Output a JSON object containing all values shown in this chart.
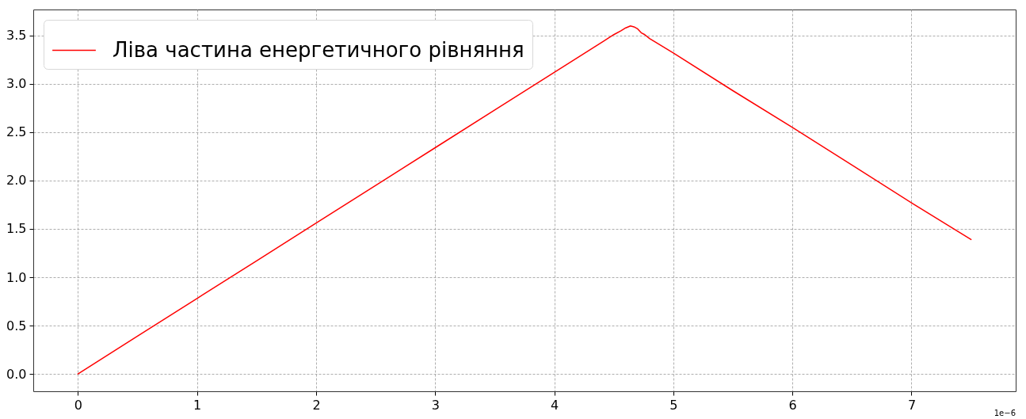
{
  "chart_data": {
    "type": "line",
    "x": [
      0,
      0.5,
      1,
      1.5,
      2,
      2.5,
      3,
      3.5,
      4,
      4.5,
      4.56,
      4.6,
      4.64,
      4.67,
      4.7,
      4.73,
      4.76,
      4.8,
      5,
      5.5,
      6,
      6.5,
      7,
      7.5
    ],
    "series": [
      {
        "name": "Ліва частина енергетичного рівняння",
        "color": "#ff0000",
        "values": [
          0,
          0.39,
          0.78,
          1.17,
          1.56,
          1.95,
          2.34,
          2.73,
          3.12,
          3.51,
          3.55,
          3.58,
          3.6,
          3.59,
          3.57,
          3.53,
          3.51,
          3.47,
          3.32,
          2.93,
          2.55,
          2.16,
          1.77,
          1.39
        ]
      }
    ],
    "xlim": [
      -0.375,
      7.875
    ],
    "ylim": [
      -0.18,
      3.77
    ],
    "xticks": [
      0,
      1,
      2,
      3,
      4,
      5,
      6,
      7
    ],
    "yticks": [
      {
        "value": 0,
        "label": "0.0"
      },
      0.5,
      {
        "value": 1,
        "label": "1.0"
      },
      1.5,
      {
        "value": 2,
        "label": "2.0"
      },
      2.5,
      {
        "value": 3,
        "label": "3.0"
      },
      3.5
    ],
    "grid": true,
    "legend": "top left",
    "line_style": "solid",
    "annotations": [
      "1e−6"
    ]
  }
}
